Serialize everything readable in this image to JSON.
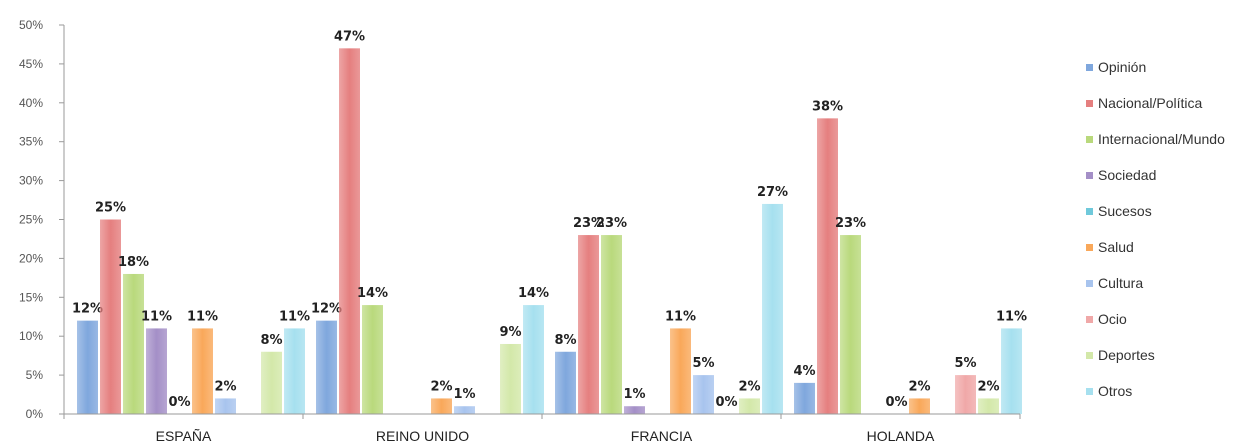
{
  "chart_data": {
    "type": "bar",
    "title": "",
    "xlabel": "",
    "ylabel": "",
    "ylim": [
      0,
      50
    ],
    "y_tick_labels": [
      "0%",
      "5%",
      "10%",
      "15%",
      "20%",
      "25%",
      "30%",
      "35%",
      "40%",
      "45%",
      "50%"
    ],
    "grid": false,
    "legend_position": "right",
    "categories": [
      "ESPAÑA",
      "REINO UNIDO",
      "FRANCIA",
      "HOLANDA"
    ],
    "series": [
      {
        "name": "Opinión",
        "color": "#7fa7dd",
        "values": [
          12,
          12,
          8,
          4
        ],
        "labels": [
          "12%",
          "12%",
          "8%",
          "4%"
        ]
      },
      {
        "name": "Nacional/Política",
        "color": "#e57f7f",
        "values": [
          25,
          47,
          23,
          38
        ],
        "labels": [
          "25%",
          "47%",
          "23%",
          "38%"
        ]
      },
      {
        "name": "Internacional/Mundo",
        "color": "#b9d97c",
        "values": [
          18,
          14,
          23,
          23
        ],
        "labels": [
          "18%",
          "14%",
          "23%",
          "23%"
        ]
      },
      {
        "name": "Sociedad",
        "color": "#a48fc7",
        "values": [
          11,
          0,
          1,
          0
        ],
        "labels": [
          "11%",
          "",
          "1%",
          ""
        ]
      },
      {
        "name": "Sucesos",
        "color": "#6fc9db",
        "values": [
          0,
          0,
          0,
          0
        ],
        "labels": [
          "0%",
          "",
          "",
          "0%"
        ]
      },
      {
        "name": "Salud",
        "color": "#f9a85a",
        "values": [
          11,
          2,
          11,
          2
        ],
        "labels": [
          "11%",
          "2%",
          "11%",
          "2%"
        ]
      },
      {
        "name": "Cultura",
        "color": "#a8c4ee",
        "values": [
          2,
          1,
          5,
          0
        ],
        "labels": [
          "2%",
          "1%",
          "5%",
          ""
        ]
      },
      {
        "name": "Ocio",
        "color": "#f0a8a8",
        "values": [
          0,
          0,
          0,
          5
        ],
        "labels": [
          "",
          "",
          "0%",
          "5%"
        ]
      },
      {
        "name": "Deportes",
        "color": "#d3e8a9",
        "values": [
          8,
          9,
          2,
          2
        ],
        "labels": [
          "8%",
          "9%",
          "2%",
          "2%"
        ]
      },
      {
        "name": "Otros",
        "color": "#a6e0ef",
        "values": [
          11,
          14,
          27,
          11
        ],
        "labels": [
          "11%",
          "14%",
          "27%",
          "11%"
        ]
      }
    ],
    "legend_overrides": {
      "Otros_last_visible_series": "#cdb9e2"
    }
  }
}
